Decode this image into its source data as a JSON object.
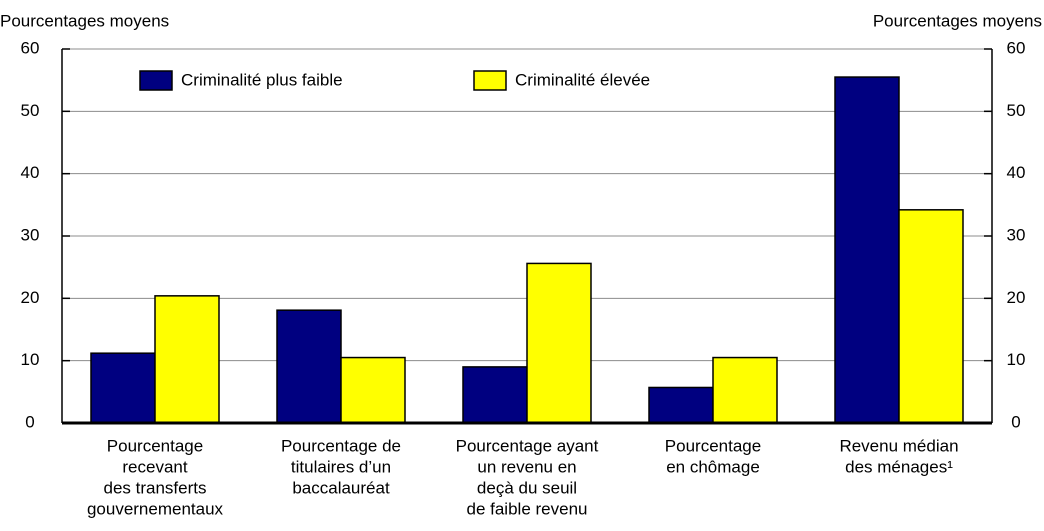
{
  "chart_data": {
    "type": "bar",
    "y_label": "Pourcentages moyens",
    "y2_label": "Pourcentages moyens",
    "categories": [
      [
        "Pourcentage",
        "recevant",
        "des transferts",
        "gouvernementaux"
      ],
      [
        "Pourcentage de",
        "titulaires d’un",
        "baccalauréat"
      ],
      [
        "Pourcentage ayant",
        "un revenu en",
        "deçà du seuil",
        "de faible revenu"
      ],
      [
        "Pourcentage",
        "en chômage"
      ],
      [
        "Revenu médian",
        "des ménages¹"
      ]
    ],
    "series": [
      {
        "name": "Criminalité plus faible",
        "color": "#000080",
        "values": [
          11.2,
          18.1,
          9.0,
          5.7,
          55.5
        ]
      },
      {
        "name": "Criminalité élevée",
        "color": "#ffff00",
        "values": [
          20.4,
          10.5,
          25.6,
          10.5,
          34.2
        ]
      }
    ],
    "ylim": [
      0,
      60
    ],
    "yticks": [
      0,
      10,
      20,
      30,
      40,
      50,
      60
    ],
    "y2lim": [
      0,
      60
    ],
    "y2ticks": [
      0,
      10,
      20,
      30,
      40,
      50,
      60
    ],
    "grid": true,
    "legend": "top"
  }
}
